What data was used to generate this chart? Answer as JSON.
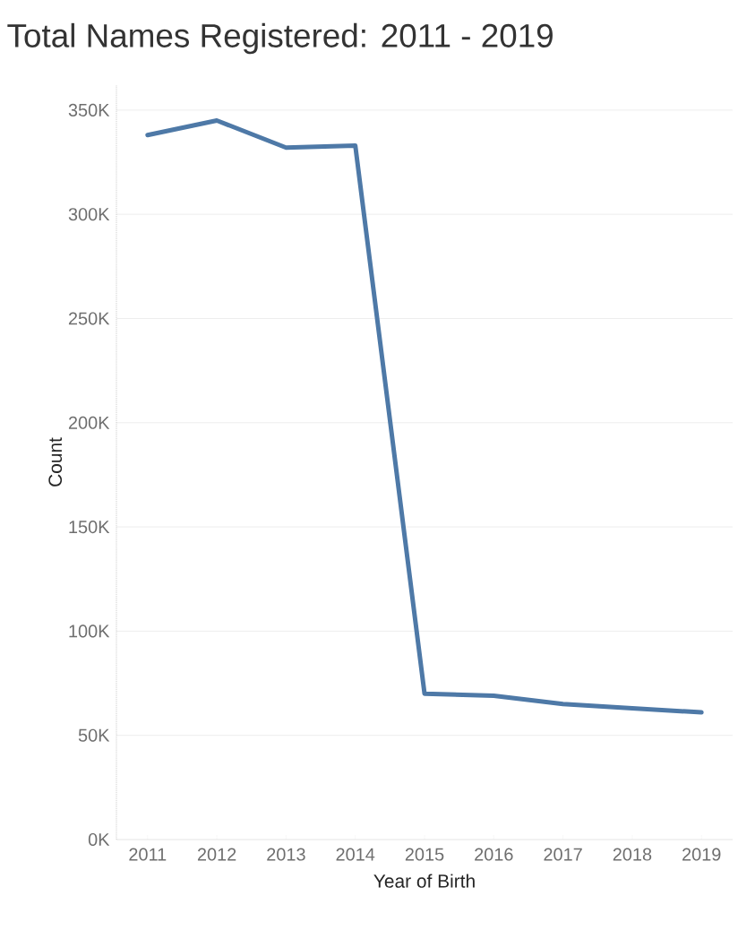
{
  "chart_data": {
    "type": "line",
    "title": "Total Names Registered: 2011 - 2019",
    "xlabel": "Year of Birth",
    "ylabel": "Count",
    "categories": [
      "2011",
      "2012",
      "2013",
      "2014",
      "2015",
      "2016",
      "2017",
      "2018",
      "2019"
    ],
    "values": [
      338000,
      345000,
      332000,
      333000,
      70000,
      69000,
      65000,
      63000,
      61000
    ],
    "color": "#4e79a7",
    "ylim": [
      0,
      362000
    ],
    "yticks": [
      {
        "value": 0,
        "label": "0K"
      },
      {
        "value": 50000,
        "label": "50K"
      },
      {
        "value": 100000,
        "label": "100K"
      },
      {
        "value": 150000,
        "label": "150K"
      },
      {
        "value": 200000,
        "label": "200K"
      },
      {
        "value": 250000,
        "label": "250K"
      },
      {
        "value": 300000,
        "label": "300K"
      },
      {
        "value": 350000,
        "label": "350K"
      }
    ],
    "grid": "y"
  }
}
